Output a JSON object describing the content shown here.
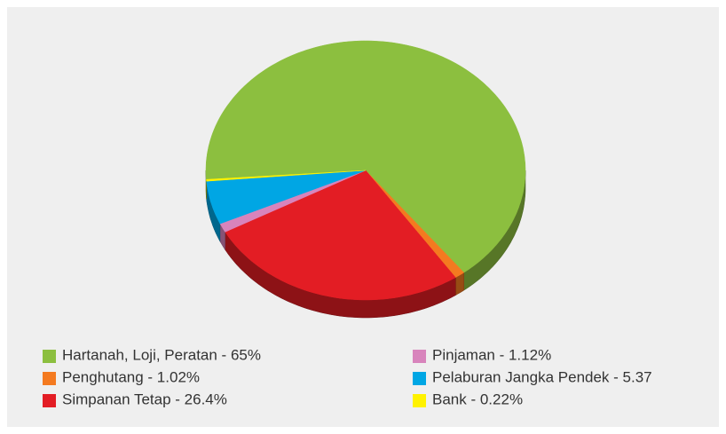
{
  "chart_data": {
    "type": "pie",
    "categories": [
      "Hartanah, Loji, Peratan - 65%",
      "Penghutang - 1.02%",
      "Simpanan Tetap - 26.4%",
      "Pinjaman - 1.12%",
      "Pelaburan Jangka Pendek - 5.37",
      "Bank - 0.22%"
    ],
    "values": [
      65,
      1.02,
      26.4,
      1.12,
      5.37,
      0.22
    ],
    "colors": [
      "#8cbf3f",
      "#f47a20",
      "#e31d24",
      "#d884bc",
      "#00a6e4",
      "#fff200"
    ],
    "legend": "bottom"
  }
}
